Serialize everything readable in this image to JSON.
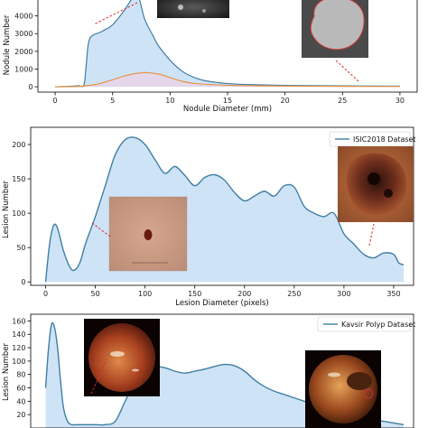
{
  "colors": {
    "line": "#3f7fa3",
    "fill": "#cfe3f7",
    "secondary_line": "#e8944a",
    "secondary_fill": "#e7d3e5",
    "axis": "#000000",
    "pointer": "#d92b2b"
  },
  "chart_data": [
    {
      "type": "area",
      "xlabel": "Nodule Diameter (mm)",
      "ylabel": "Nodule Number",
      "xlim": [
        -1.5,
        31.5
      ],
      "ylim": [
        -300,
        5000
      ],
      "x_ticks": [
        0,
        5,
        10,
        15,
        20,
        25,
        30
      ],
      "y_ticks": [
        0,
        1000,
        2000,
        3000,
        4000
      ],
      "series": [
        {
          "x": [
            0,
            1,
            2,
            2.5,
            2.7,
            3,
            4,
            5,
            6,
            6.5,
            7,
            7.3,
            7.8,
            8.5,
            9,
            10,
            11,
            12,
            13,
            14,
            15,
            17,
            20,
            25,
            30
          ],
          "y": [
            0,
            20,
            60,
            100,
            1200,
            2700,
            3100,
            3500,
            4300,
            4800,
            5200,
            5000,
            3800,
            2900,
            2300,
            1500,
            900,
            550,
            350,
            250,
            180,
            120,
            80,
            50,
            40
          ]
        },
        {
          "x": [
            0,
            2,
            3,
            4,
            5,
            6,
            7,
            8,
            9,
            10,
            11,
            12,
            14,
            16,
            20,
            25,
            30
          ],
          "y": [
            0,
            20,
            80,
            200,
            400,
            600,
            750,
            800,
            720,
            520,
            320,
            200,
            110,
            70,
            40,
            25,
            20
          ]
        }
      ]
    },
    {
      "type": "area",
      "xlabel": "Lesion Diameter (pixels)",
      "ylabel": "Lesion Number",
      "xlim": [
        -15,
        370
      ],
      "ylim": [
        -5,
        225
      ],
      "x_ticks": [
        0,
        50,
        100,
        150,
        200,
        250,
        300,
        350
      ],
      "y_ticks": [
        0,
        50,
        100,
        150,
        200
      ],
      "legend": "ISIC2018 Dataset",
      "series": [
        {
          "x": [
            0,
            4,
            8,
            12,
            18,
            25,
            30,
            35,
            40,
            50,
            60,
            70,
            80,
            90,
            100,
            110,
            120,
            130,
            140,
            150,
            160,
            170,
            180,
            190,
            200,
            210,
            220,
            230,
            240,
            250,
            260,
            270,
            280,
            290,
            300,
            310,
            320,
            330,
            340,
            350,
            355,
            360
          ],
          "y": [
            0,
            55,
            82,
            78,
            45,
            20,
            18,
            30,
            55,
            95,
            140,
            185,
            207,
            210,
            200,
            178,
            158,
            168,
            155,
            140,
            152,
            156,
            148,
            130,
            118,
            125,
            132,
            125,
            140,
            138,
            110,
            100,
            95,
            100,
            70,
            55,
            40,
            35,
            42,
            40,
            28,
            25
          ]
        }
      ]
    },
    {
      "type": "area",
      "xlabel": "",
      "ylabel": "Lesion Number",
      "xlim": [
        -15,
        370
      ],
      "ylim": [
        0,
        170
      ],
      "y_ticks": [
        20,
        40,
        60,
        80,
        100,
        120,
        140,
        160
      ],
      "legend": "Kavsir Polyp Dataset",
      "series": [
        {
          "x": [
            0,
            3,
            6,
            9,
            12,
            15,
            18,
            22,
            26,
            30,
            40,
            50,
            60,
            70,
            80,
            90,
            100,
            110,
            120,
            130,
            140,
            150,
            160,
            170,
            180,
            190,
            200,
            210,
            220,
            230,
            240,
            260,
            280,
            300,
            320,
            340,
            360
          ],
          "y": [
            60,
            120,
            155,
            150,
            120,
            70,
            30,
            10,
            5,
            5,
            5,
            5,
            5,
            10,
            40,
            70,
            90,
            92,
            90,
            85,
            82,
            85,
            88,
            92,
            95,
            93,
            85,
            72,
            62,
            55,
            50,
            40,
            30,
            22,
            15,
            10,
            5
          ]
        }
      ]
    }
  ]
}
